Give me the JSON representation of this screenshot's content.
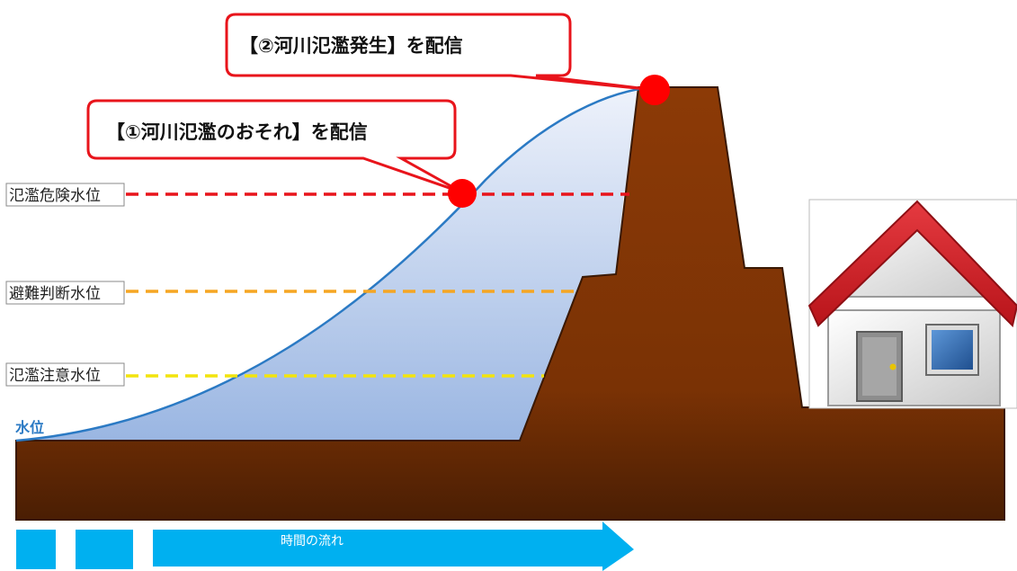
{
  "callouts": {
    "first": "【①河川氾濫のおそれ】を配信",
    "second": "【②河川氾濫発生】を配信"
  },
  "levels": {
    "danger": "氾濫危険水位",
    "evacuation": "避難判断水位",
    "caution": "氾濫注意水位"
  },
  "water_level_label": "水位",
  "time_label": "時間の流れ",
  "colors": {
    "danger_line": "#e8141b",
    "evacuation_line": "#f5a623",
    "caution_line": "#f2e40d",
    "water_curve": "#2b7ac4",
    "water_fill_top": "#eef2fb",
    "water_fill_bottom": "#9ab6e2",
    "ground": "#8c3a06",
    "ground_dark": "#5a2504",
    "callout_border": "#e8141b",
    "marker": "#ff0000",
    "arrow": "#00b0f0",
    "roof": "#d8232a",
    "house_wall": "#e6e6e6",
    "window": "#2f6cb3"
  },
  "icons": {
    "house": "house-icon"
  }
}
